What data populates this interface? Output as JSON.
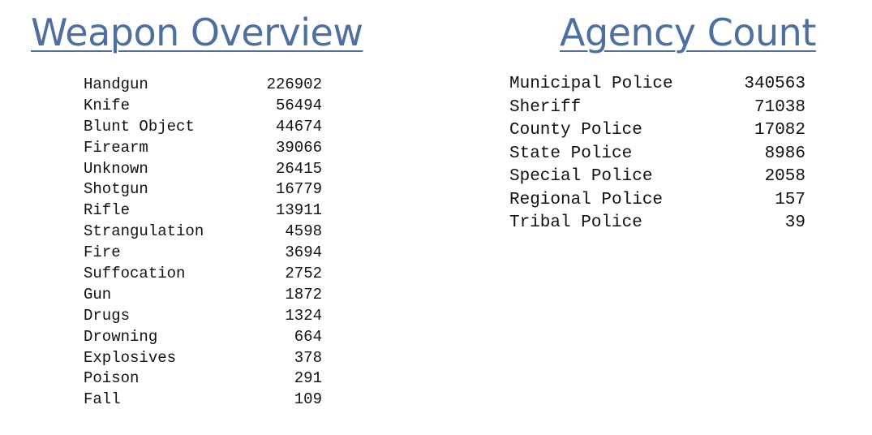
{
  "weapon": {
    "title": "Weapon Overview",
    "rows": [
      {
        "label": "Handgun",
        "value": "226902"
      },
      {
        "label": "Knife",
        "value": "56494"
      },
      {
        "label": "Blunt Object",
        "value": "44674"
      },
      {
        "label": "Firearm",
        "value": "39066"
      },
      {
        "label": "Unknown",
        "value": "26415"
      },
      {
        "label": "Shotgun",
        "value": "16779"
      },
      {
        "label": "Rifle",
        "value": "13911"
      },
      {
        "label": "Strangulation",
        "value": "4598"
      },
      {
        "label": "Fire",
        "value": "3694"
      },
      {
        "label": "Suffocation",
        "value": "2752"
      },
      {
        "label": "Gun",
        "value": "1872"
      },
      {
        "label": "Drugs",
        "value": "1324"
      },
      {
        "label": "Drowning",
        "value": "664"
      },
      {
        "label": "Explosives",
        "value": "378"
      },
      {
        "label": "Poison",
        "value": "291"
      },
      {
        "label": "Fall",
        "value": "109"
      }
    ]
  },
  "agency": {
    "title": "Agency Count",
    "rows": [
      {
        "label": "Municipal Police",
        "value": "340563"
      },
      {
        "label": "Sheriff",
        "value": "71038"
      },
      {
        "label": "County Police",
        "value": "17082"
      },
      {
        "label": "State Police",
        "value": "8986"
      },
      {
        "label": "Special Police",
        "value": "2058"
      },
      {
        "label": "Regional Police",
        "value": "157"
      },
      {
        "label": "Tribal Police",
        "value": "39"
      }
    ]
  },
  "colors": {
    "heading": "#4e6f9f",
    "text": "#111111",
    "background": "#ffffff"
  }
}
